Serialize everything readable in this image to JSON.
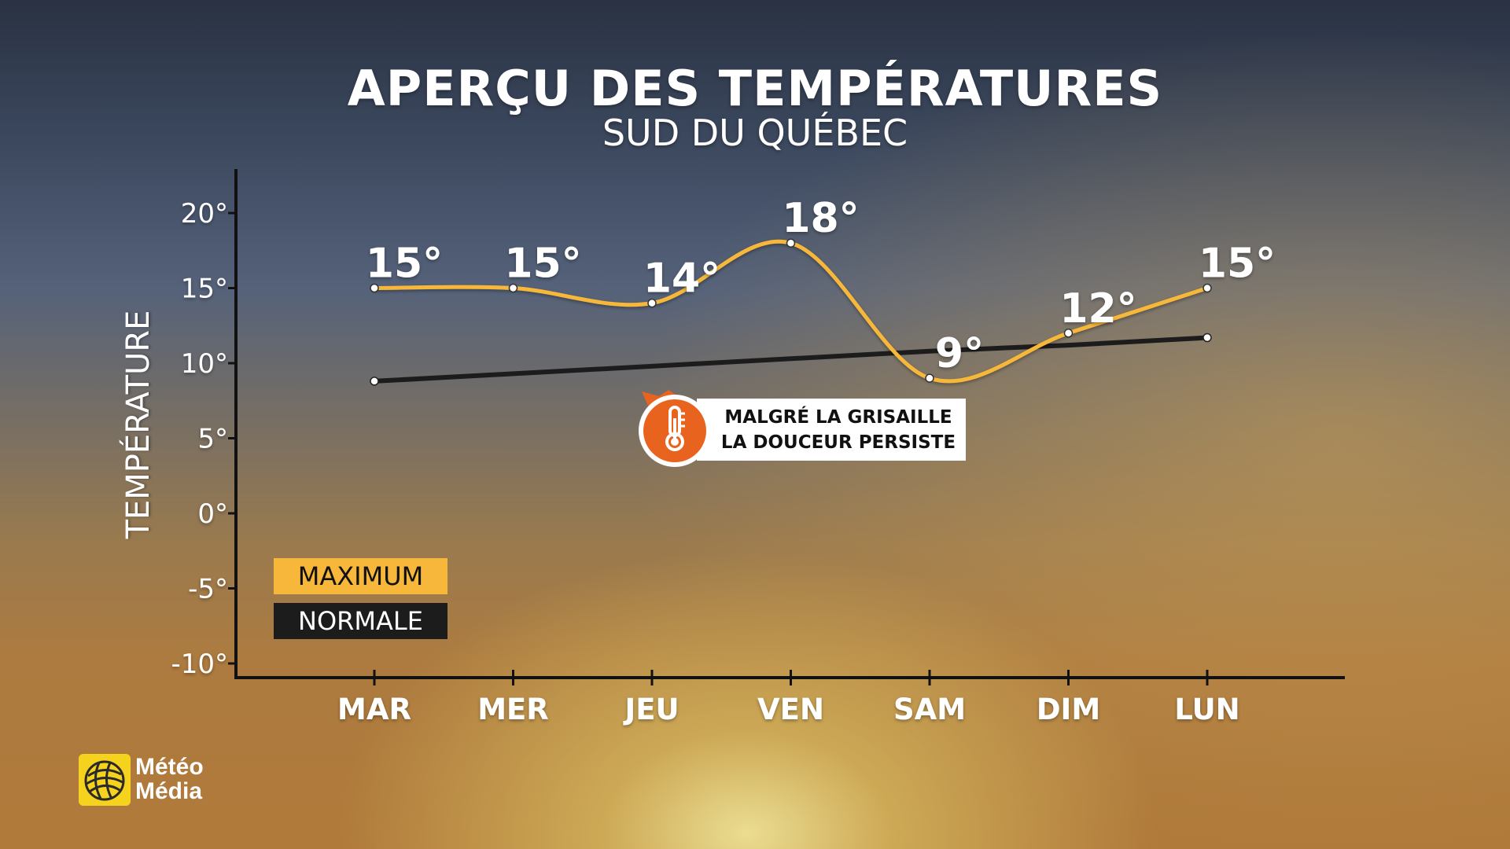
{
  "title": "APERÇU DES TEMPÉRATURES",
  "subtitle": "SUD DU QUÉBEC",
  "legend": {
    "maximum": "MAXIMUM",
    "normale": "NORMALE"
  },
  "callout": {
    "line1": "MALGRÉ LA GRISAILLE",
    "line2": "LA DOUCEUR PERSISTE",
    "icon": "thermometer-icon"
  },
  "logo": {
    "line1": "Météo",
    "line2": "Média"
  },
  "colors": {
    "maximum": "#f7b73a",
    "normale": "#1c1c1c",
    "callout_orange": "#e8641e"
  },
  "chart_data": {
    "type": "line",
    "ylabel": "TEMPÉRATURE",
    "xlabel": "",
    "ylim": [
      -10,
      20
    ],
    "yticks": [
      {
        "value": 20,
        "label": "20°"
      },
      {
        "value": 15,
        "label": "15°"
      },
      {
        "value": 10,
        "label": "10°"
      },
      {
        "value": 5,
        "label": "5°"
      },
      {
        "value": 0,
        "label": "0°"
      },
      {
        "value": -5,
        "label": "-5°"
      },
      {
        "value": -10,
        "label": "-10°"
      }
    ],
    "categories": [
      "MAR",
      "MER",
      "JEU",
      "VEN",
      "SAM",
      "DIM",
      "LUN"
    ],
    "series": [
      {
        "name": "MAXIMUM",
        "values": [
          15,
          15,
          14,
          18,
          9,
          12,
          15
        ],
        "labels": [
          "15°",
          "15°",
          "14°",
          "18°",
          "9°",
          "12°",
          "15°"
        ],
        "color": "#f7b73a",
        "smooth": true
      },
      {
        "name": "NORMALE",
        "values": [
          8.8,
          9.3,
          9.8,
          10.3,
          10.8,
          11.2,
          11.7
        ],
        "color": "#1c1c1c",
        "smooth": false
      }
    ],
    "grid": false,
    "legend_position": "bottom-left"
  }
}
